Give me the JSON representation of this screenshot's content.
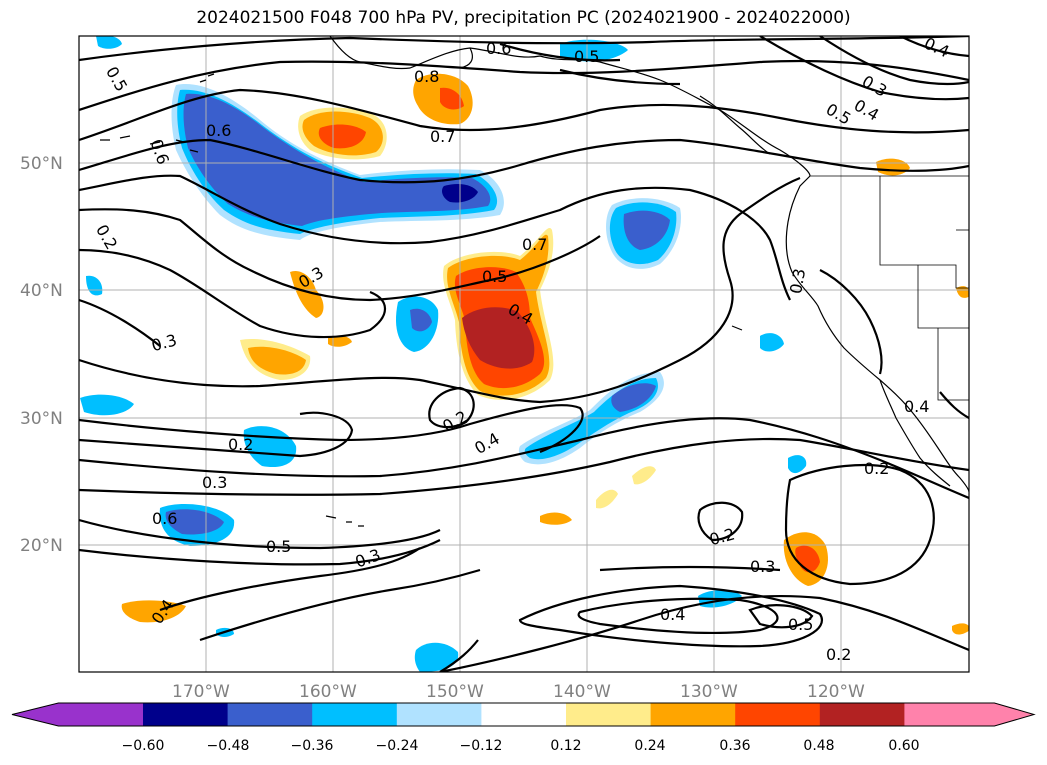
{
  "title": "2024021500 F048 700 hPa PV, precipitation PC (2024021900 - 2024022000)",
  "latitude_labels": [
    "50°N",
    "40°N",
    "30°N",
    "20°N"
  ],
  "longitude_labels": [
    "170°W",
    "160°W",
    "150°W",
    "140°W",
    "130°W",
    "120°W"
  ],
  "colorbar": {
    "ticks": [
      "−0.60",
      "−0.48",
      "−0.36",
      "−0.24",
      "−0.12",
      "0.12",
      "0.24",
      "0.36",
      "0.48",
      "0.60"
    ],
    "colors": [
      "#9932cc",
      "#00008b",
      "#3a5fcd",
      "#00bfff",
      "#b0e2ff",
      "#ffffff",
      "#ffec8b",
      "#ffa500",
      "#ff4500",
      "#b22222",
      "#ff82ab"
    ]
  },
  "contour_labels": [
    "0.6",
    "0.5",
    "0.8",
    "0.6",
    "0.7",
    "0.5",
    "0.3",
    "0.4",
    "0.6",
    "0.2",
    "0.3",
    "0.3",
    "0.7",
    "0.5",
    "0.4",
    "0.3",
    "0.2",
    "0.4",
    "0.2",
    "0.3",
    "0.6",
    "0.5",
    "0.3",
    "0.2",
    "0.3",
    "0.4",
    "0.5",
    "0.2",
    "0.2",
    "0.4",
    "0.4",
    "0.4",
    "0.5"
  ]
}
